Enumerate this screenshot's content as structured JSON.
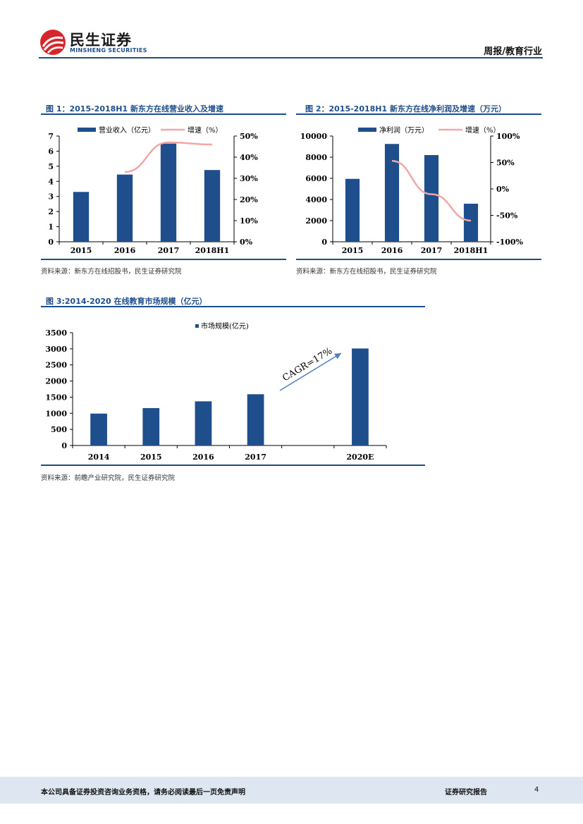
{
  "header": {
    "logo_cn": "民生证券",
    "logo_en": "MINSHENG SECURITIES",
    "report_type": "周报/教育行业"
  },
  "figures": [
    {
      "title": "图 1：2015-2018H1 新东方在线营业收入及增速",
      "source": "资料来源：新东方在线招股书，民生证券研究院"
    },
    {
      "title": "图 2：2015-2018H1 新东方在线净利润及增速（万元）",
      "source": "资料来源：新东方在线招股书，民生证券研究院"
    },
    {
      "title": "图 3:2014-2020 在线教育市场规模（亿元）",
      "source": "资料来源：前瞻产业研究院，民生证券研究院"
    }
  ],
  "chart_data": [
    {
      "type": "bar",
      "categories": [
        "2015",
        "2016",
        "2017",
        "2018H1"
      ],
      "series": [
        {
          "name": "营业收入（亿元）",
          "type": "bar",
          "axis": "left",
          "values": [
            3.3,
            4.45,
            6.5,
            4.75
          ]
        },
        {
          "name": "增速（%）",
          "type": "line",
          "axis": "right",
          "values": [
            null,
            33,
            47,
            46
          ]
        }
      ],
      "y_left": {
        "min": 0,
        "max": 7,
        "ticks": [
          "0",
          "1",
          "2",
          "3",
          "4",
          "5",
          "6",
          "7"
        ]
      },
      "y_right": {
        "min": 0,
        "max": 50,
        "ticks": [
          "0%",
          "10%",
          "20%",
          "30%",
          "40%",
          "50%"
        ]
      },
      "legend": "top",
      "colors": {
        "bar": "#1f4e8c",
        "line": "#f2a7a7"
      }
    },
    {
      "type": "bar",
      "categories": [
        "2015",
        "2016",
        "2017",
        "2018H1"
      ],
      "series": [
        {
          "name": "净利润（万元）",
          "type": "bar",
          "axis": "left",
          "values": [
            5950,
            9250,
            8200,
            3600
          ]
        },
        {
          "name": "增速（%）",
          "type": "line",
          "axis": "right",
          "values": [
            null,
            53,
            -10,
            -60
          ]
        }
      ],
      "y_left": {
        "min": 0,
        "max": 10000,
        "ticks": [
          "0",
          "2000",
          "4000",
          "6000",
          "8000",
          "10000"
        ]
      },
      "y_right": {
        "min": -100,
        "max": 100,
        "ticks": [
          "-100%",
          "-50%",
          "0%",
          "50%",
          "100%"
        ]
      },
      "legend": "top",
      "colors": {
        "bar": "#1f4e8c",
        "line": "#f2a7a7"
      }
    },
    {
      "type": "bar",
      "categories": [
        "2014",
        "2015",
        "2016",
        "2017",
        "",
        "2020E"
      ],
      "series": [
        {
          "name": "市场规模(亿元)",
          "values": [
            990,
            1160,
            1370,
            1590,
            null,
            3010
          ]
        }
      ],
      "y": {
        "min": 0,
        "max": 3500,
        "ticks": [
          "0",
          "500",
          "1000",
          "1500",
          "2000",
          "2500",
          "3000",
          "3500"
        ]
      },
      "annotation": "CAGR=17%",
      "legend": "top",
      "colors": {
        "bar": "#1f4e8c",
        "arrow": "#4f7fbf"
      }
    }
  ],
  "footer": {
    "disclaimer": "本公司具备证券投资咨询业务资格，请务必阅读最后一页免责声明",
    "doc_type": "证券研究报告",
    "page": "4"
  }
}
